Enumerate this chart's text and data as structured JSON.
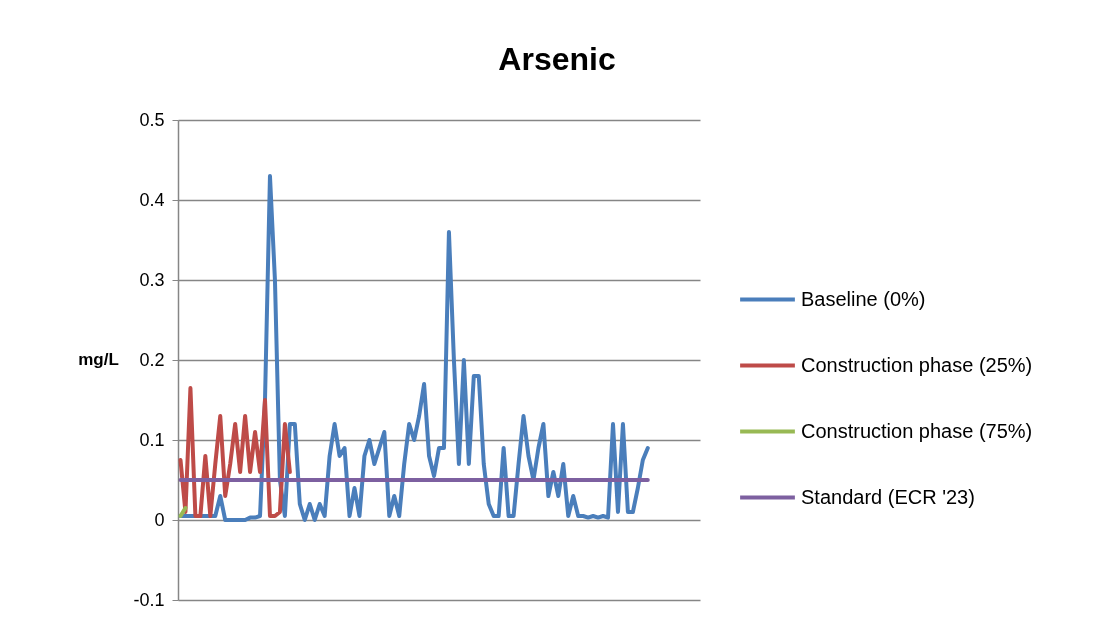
{
  "chart_data": {
    "type": "line",
    "title": "Arsenic",
    "ylabel": "mg/L",
    "categories": [
      null,
      null,
      null,
      null,
      null,
      null,
      null,
      null,
      null,
      null,
      null,
      null,
      null,
      null,
      null,
      null,
      null,
      null,
      null,
      null,
      null,
      null,
      null,
      null,
      null,
      null,
      null,
      null,
      null,
      null,
      null,
      null,
      null,
      null,
      null,
      null,
      null,
      null,
      null,
      null,
      null,
      null,
      null,
      null,
      null,
      null,
      null,
      null,
      null,
      null,
      null,
      null,
      null,
      null,
      null,
      null,
      null,
      null,
      null,
      null,
      null,
      null,
      null,
      null,
      null,
      null,
      null,
      null,
      null,
      null,
      null,
      null,
      null,
      null,
      null,
      null,
      null,
      null,
      null,
      null,
      null,
      null,
      null,
      null,
      null,
      null,
      null,
      null,
      null,
      null,
      null,
      null,
      null,
      null,
      null,
      null,
      null,
      null,
      null,
      null,
      null,
      null,
      null,
      null,
      null
    ],
    "series": [
      {
        "name": "Baseline (0%)",
        "color": "#4a7ebb",
        "values": [
          0.005,
          0.005,
          0.005,
          0.005,
          0.005,
          0.005,
          0.005,
          0.005,
          0.03,
          0,
          0,
          0,
          0,
          0,
          0.003,
          0.003,
          0.005,
          0.15,
          0.43,
          0.3,
          0.05,
          0.005,
          0.12,
          0.12,
          0.02,
          0,
          0.02,
          0,
          0.02,
          0.005,
          0.08,
          0.12,
          0.08,
          0.09,
          0.005,
          0.04,
          0.005,
          0.08,
          0.1,
          0.07,
          0.09,
          0.11,
          0.005,
          0.03,
          0.005,
          0.07,
          0.12,
          0.1,
          0.13,
          0.17,
          0.08,
          0.055,
          0.09,
          0.09,
          0.36,
          0.2,
          0.07,
          0.2,
          0.07,
          0.18,
          0.18,
          0.07,
          0.02,
          0.005,
          0.005,
          0.09,
          0.005,
          0.005,
          0.07,
          0.13,
          0.08,
          0.05,
          0.09,
          0.12,
          0.03,
          0.06,
          0.03,
          0.07,
          0.005,
          0.03,
          0.005,
          0.005,
          0.003,
          0.005,
          0.003,
          0.005,
          0.003,
          0.12,
          0.01,
          0.12,
          0.01,
          0.01,
          0.04,
          0.075,
          0.09,
          null,
          null,
          null,
          null,
          null,
          null,
          null,
          null,
          null,
          null
        ]
      },
      {
        "name": "Construction phase (25%)",
        "color": "#be4b48",
        "values": [
          0.075,
          0.01,
          0.165,
          0.005,
          0.005,
          0.08,
          0.005,
          0.07,
          0.13,
          0.03,
          0.07,
          0.12,
          0.06,
          0.13,
          0.06,
          0.11,
          0.06,
          0.15,
          0.005,
          0.005,
          0.01,
          0.12,
          0.06,
          null,
          null,
          null,
          null,
          null,
          null,
          null,
          null,
          null,
          null,
          null,
          null,
          null,
          null,
          null,
          null,
          null,
          null,
          null,
          null,
          null,
          null,
          null,
          null,
          null,
          null,
          null,
          null,
          null,
          null,
          null,
          null,
          null,
          null,
          null,
          null,
          null,
          null,
          null,
          null,
          null,
          null,
          null,
          null,
          null,
          null,
          null,
          null,
          null,
          null,
          null,
          null,
          null,
          null,
          null,
          null,
          null,
          null,
          null,
          null,
          null,
          null,
          null,
          null,
          null,
          null,
          null,
          null,
          null,
          null,
          null,
          null,
          null,
          null,
          null,
          null,
          null,
          null,
          null,
          null,
          null,
          null
        ]
      },
      {
        "name": "Construction phase (75%)",
        "color": "#98b954",
        "values": [
          0.005,
          0.015,
          null,
          null,
          null,
          null,
          null,
          null,
          null,
          null,
          null,
          null,
          null,
          null,
          null,
          null,
          null,
          null,
          null,
          null,
          null,
          null,
          null,
          null,
          null,
          null,
          null,
          null,
          null,
          null,
          null,
          null,
          null,
          null,
          null,
          null,
          null,
          null,
          null,
          null,
          null,
          null,
          null,
          null,
          null,
          null,
          null,
          null,
          null,
          null,
          null,
          null,
          null,
          null,
          null,
          null,
          null,
          null,
          null,
          null,
          null,
          null,
          null,
          null,
          null,
          null,
          null,
          null,
          null,
          null,
          null,
          null,
          null,
          null,
          null,
          null,
          null,
          null,
          null,
          null,
          null,
          null,
          null,
          null,
          null,
          null,
          null,
          null,
          null,
          null,
          null,
          null,
          null,
          null,
          null,
          null,
          null,
          null,
          null,
          null,
          null,
          null,
          null,
          null,
          null
        ]
      },
      {
        "name": "Standard (ECR '23)",
        "color": "#7d60a0",
        "values": [
          0.05,
          0.05,
          0.05,
          0.05,
          0.05,
          0.05,
          0.05,
          0.05,
          0.05,
          0.05,
          0.05,
          0.05,
          0.05,
          0.05,
          0.05,
          0.05,
          0.05,
          0.05,
          0.05,
          0.05,
          0.05,
          0.05,
          0.05,
          0.05,
          0.05,
          0.05,
          0.05,
          0.05,
          0.05,
          0.05,
          0.05,
          0.05,
          0.05,
          0.05,
          0.05,
          0.05,
          0.05,
          0.05,
          0.05,
          0.05,
          0.05,
          0.05,
          0.05,
          0.05,
          0.05,
          0.05,
          0.05,
          0.05,
          0.05,
          0.05,
          0.05,
          0.05,
          0.05,
          0.05,
          0.05,
          0.05,
          0.05,
          0.05,
          0.05,
          0.05,
          0.05,
          0.05,
          0.05,
          0.05,
          0.05,
          0.05,
          0.05,
          0.05,
          0.05,
          0.05,
          0.05,
          0.05,
          0.05,
          0.05,
          0.05,
          0.05,
          0.05,
          0.05,
          0.05,
          0.05,
          0.05,
          0.05,
          0.05,
          0.05,
          0.05,
          0.05,
          0.05,
          0.05,
          0.05,
          0.05,
          0.05,
          0.05,
          0.05,
          0.05,
          0.05,
          null,
          null,
          null,
          null,
          null,
          null,
          null,
          null,
          null,
          null
        ]
      }
    ],
    "ylim": [
      -0.1,
      0.5
    ],
    "yticks": [
      -0.1,
      0,
      0.1,
      0.2,
      0.3,
      0.4,
      0.5
    ],
    "grid": "y",
    "legend": "right",
    "tick_labels": "y",
    "marker": "none",
    "line_style": "solid"
  }
}
